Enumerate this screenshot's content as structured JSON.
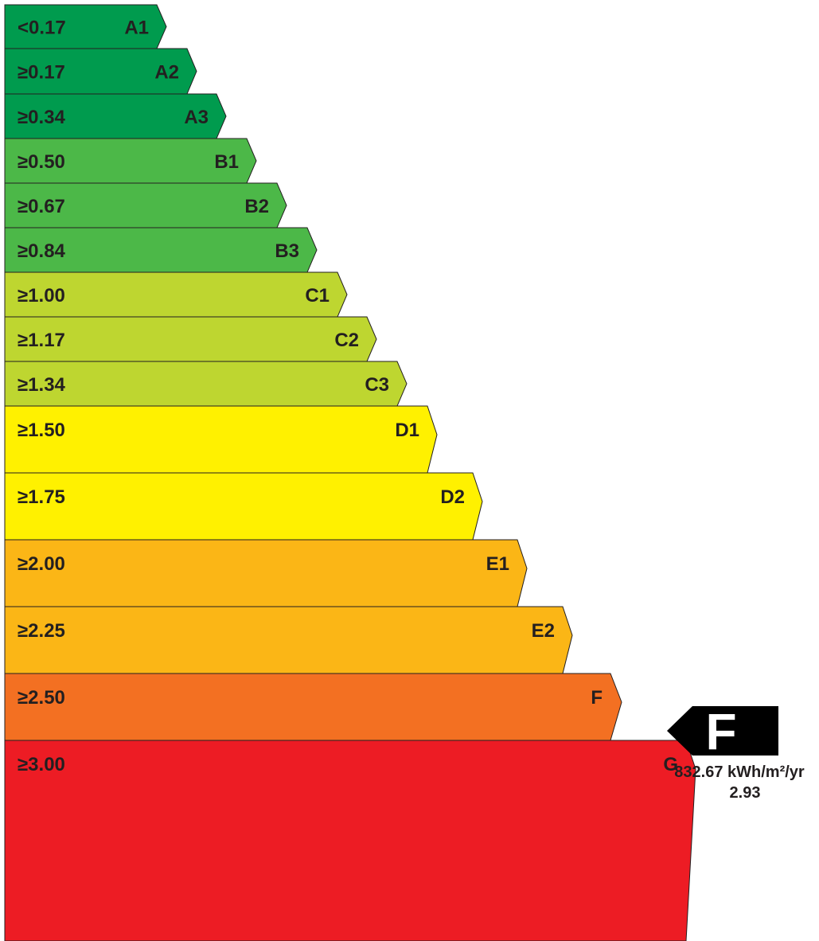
{
  "chart_data": {
    "type": "bar",
    "bands": [
      {
        "threshold": "<0.17",
        "grade": "A1",
        "color": "#009b4e"
      },
      {
        "threshold": "≥0.17",
        "grade": "A2",
        "color": "#009b4e"
      },
      {
        "threshold": "≥0.34",
        "grade": "A3",
        "color": "#009b4e"
      },
      {
        "threshold": "≥0.50",
        "grade": "B1",
        "color": "#4cb848"
      },
      {
        "threshold": "≥0.67",
        "grade": "B2",
        "color": "#4cb848"
      },
      {
        "threshold": "≥0.84",
        "grade": "B3",
        "color": "#4cb848"
      },
      {
        "threshold": "≥1.00",
        "grade": "C1",
        "color": "#bed630"
      },
      {
        "threshold": "≥1.17",
        "grade": "C2",
        "color": "#bed630"
      },
      {
        "threshold": "≥1.34",
        "grade": "C3",
        "color": "#bed630"
      },
      {
        "threshold": "≥1.50",
        "grade": "D1",
        "color": "#fff100"
      },
      {
        "threshold": "≥1.75",
        "grade": "D2",
        "color": "#fff100"
      },
      {
        "threshold": "≥2.00",
        "grade": "E1",
        "color": "#fbb616"
      },
      {
        "threshold": "≥2.25",
        "grade": "E2",
        "color": "#fbb616"
      },
      {
        "threshold": "≥2.50",
        "grade": "F",
        "color": "#f37022"
      },
      {
        "threshold": "≥3.00",
        "grade": "G",
        "color": "#ed1c24"
      }
    ],
    "current_rating": {
      "grade": "F",
      "energy_value": "832.67 kWh/m²/yr",
      "ratio_value": "2.93",
      "ratio_numeric": 2.93
    }
  }
}
